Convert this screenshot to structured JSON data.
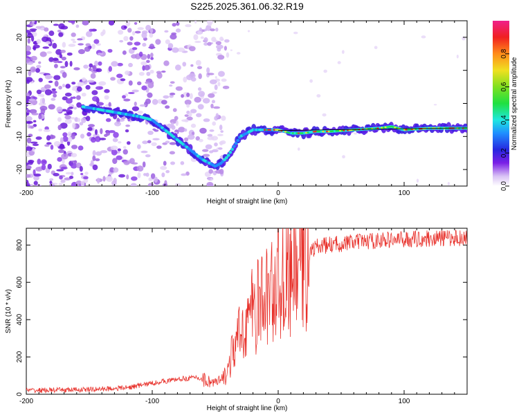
{
  "figure_title": "S225.2025.361.06.32.R19",
  "colors": {
    "line": "#e8322c",
    "axis": "#000000",
    "background": "#ffffff"
  },
  "chart_data": [
    {
      "type": "heatmap",
      "name": "spectrogram",
      "xlabel": "Height of straight line (km)",
      "ylabel": "Frequency (Hz)",
      "xlim": [
        -200,
        150
      ],
      "ylim": [
        -25,
        25
      ],
      "xticks": [
        -200,
        -100,
        0,
        100
      ],
      "yticks": [
        -20,
        -10,
        0,
        10,
        20
      ],
      "xtick_labels": [
        "-200",
        "-100",
        "0",
        "100"
      ],
      "ytick_labels": [
        "-20",
        "-10",
        "0",
        "10",
        "20"
      ],
      "ridge": {
        "description": "dominant frequency trace (Hz) vs height (km)",
        "x": [
          -155,
          -140,
          -125,
          -110,
          -100,
          -90,
          -80,
          -70,
          -60,
          -55,
          -50,
          -45,
          -40,
          -35,
          -30,
          -25,
          -20,
          -10,
          0,
          10,
          20,
          30,
          40,
          60,
          80,
          90,
          100,
          120,
          140,
          150
        ],
        "y": [
          -1,
          -2,
          -3,
          -4,
          -5,
          -8,
          -11,
          -14,
          -17,
          -18,
          -19,
          -18,
          -16,
          -13,
          -10,
          -9,
          -8,
          -8,
          -8,
          -9,
          -9,
          -8.5,
          -8.5,
          -8,
          -7.5,
          -7,
          -8,
          -7.5,
          -7.5,
          -7.5
        ]
      },
      "colorbar": {
        "label": "Normalized spectral amplitude",
        "range": [
          0,
          1
        ],
        "ticks": [
          0.0,
          0.2,
          0.4,
          0.6,
          0.8
        ],
        "tick_labels": [
          "0.0",
          "0.2",
          "0.4",
          "0.6",
          "0.8"
        ]
      }
    },
    {
      "type": "line",
      "name": "snr",
      "xlabel": "Height of straight line (km)",
      "ylabel": "SNR (10 * v/v)",
      "xlim": [
        -200,
        150
      ],
      "ylim": [
        0,
        890
      ],
      "xticks": [
        -200,
        -100,
        0,
        100
      ],
      "yticks": [
        0,
        200,
        400,
        600,
        800
      ],
      "xtick_labels": [
        "-200",
        "-100",
        "0",
        "100"
      ],
      "ytick_labels": [
        "0",
        "200",
        "400",
        "600",
        "800"
      ],
      "series": [
        {
          "name": "SNR",
          "envelope_x": [
            -200,
            -150,
            -120,
            -100,
            -80,
            -65,
            -50,
            -45,
            -40,
            -35,
            -30,
            -25,
            -20,
            -15,
            -10,
            -5,
            0,
            5,
            10,
            15,
            20,
            25,
            30,
            40,
            60,
            80,
            100,
            120,
            150
          ],
          "envelope_y": [
            20,
            25,
            35,
            60,
            80,
            90,
            60,
            70,
            130,
            250,
            320,
            400,
            450,
            480,
            520,
            560,
            600,
            630,
            660,
            700,
            720,
            760,
            790,
            800,
            815,
            825,
            830,
            835,
            840
          ]
        }
      ]
    }
  ]
}
